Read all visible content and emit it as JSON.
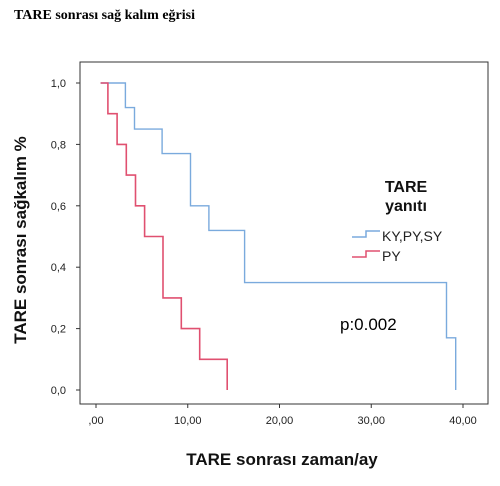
{
  "page_title": "TARE sonrası sağ kalım eğrisi",
  "chart_data": {
    "type": "line",
    "step": true,
    "xlabel": "TARE sonrası zaman/ay",
    "ylabel": "TARE sonrası sağkalım %",
    "xlim": [
      0,
      41
    ],
    "ylim": [
      0,
      1.0
    ],
    "x_ticks": [
      0,
      10,
      20,
      30,
      40
    ],
    "x_tick_labels": [
      ",00",
      "10,00",
      "20,00",
      "30,00",
      "40,00"
    ],
    "y_ticks": [
      0,
      0.2,
      0.4,
      0.6,
      0.8,
      1.0
    ],
    "y_tick_labels": [
      "0,0",
      "0,2",
      "0,4",
      "0,6",
      "0,8",
      "1,0"
    ],
    "legend": {
      "title_line1": "TARE",
      "title_line2": "yanıtı",
      "placement": "right"
    },
    "annotation": "p:0.002",
    "grid": false,
    "series": [
      {
        "name": "KY,PY,SY",
        "color": "#7aaadd",
        "x": [
          0.5,
          3.2,
          3.2,
          4.2,
          4.2,
          7.2,
          7.2,
          10.3,
          10.3,
          12.3,
          12.3,
          16.2,
          16.2,
          38.2,
          38.2,
          39.2,
          39.2
        ],
        "y": [
          1.0,
          1.0,
          0.92,
          0.92,
          0.85,
          0.85,
          0.77,
          0.77,
          0.6,
          0.6,
          0.52,
          0.52,
          0.35,
          0.35,
          0.17,
          0.17,
          0.0
        ]
      },
      {
        "name": "PY",
        "color": "#e05070",
        "x": [
          0.5,
          1.3,
          1.3,
          2.3,
          2.3,
          3.3,
          3.3,
          4.3,
          4.3,
          5.3,
          5.3,
          7.3,
          7.3,
          9.3,
          9.3,
          11.3,
          11.3,
          14.3,
          14.3
        ],
        "y": [
          1.0,
          1.0,
          0.9,
          0.9,
          0.8,
          0.8,
          0.7,
          0.7,
          0.6,
          0.6,
          0.5,
          0.5,
          0.3,
          0.3,
          0.2,
          0.2,
          0.1,
          0.1,
          0.0
        ]
      }
    ]
  }
}
